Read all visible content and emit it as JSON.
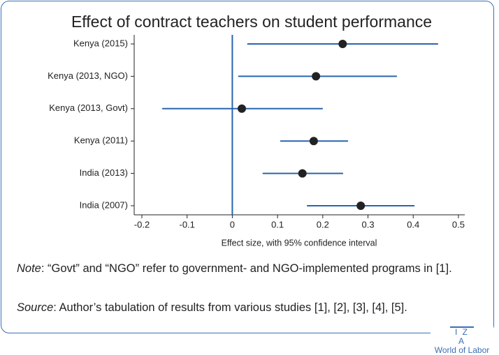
{
  "chart_data": {
    "type": "forest",
    "title": "Effect of contract teachers on student performance",
    "categories": [
      "Kenya (2015)",
      "Kenya (2013, NGO)",
      "Kenya (2013, Govt)",
      "Kenya (2011)",
      "India (2013)",
      "India (2007)"
    ],
    "values": [
      0.244,
      0.185,
      0.021,
      0.18,
      0.155,
      0.284
    ],
    "lower": [
      0.033,
      0.013,
      -0.155,
      0.106,
      0.067,
      0.165
    ],
    "upper": [
      0.455,
      0.364,
      0.2,
      0.256,
      0.245,
      0.403
    ],
    "xlabel": "Effect size, with 95% confidence interval",
    "xlim": [
      -0.217,
      0.514
    ],
    "xticks": [
      -0.2,
      -0.1,
      0,
      0.1,
      0.2,
      0.3,
      0.4,
      0.5
    ],
    "color": "#2a64ad",
    "marker_color": "#222222"
  },
  "note": {
    "label": "Note",
    "text": ": “Govt” and “NGO” refer to government- and NGO-implemented programs in [1]."
  },
  "source": {
    "label": "Source",
    "text": ": Author’s tabulation of results from various studies [1], [2], [3], [4], [5]."
  },
  "logo": {
    "top": "I Z A",
    "bottom": "World of Labor"
  }
}
